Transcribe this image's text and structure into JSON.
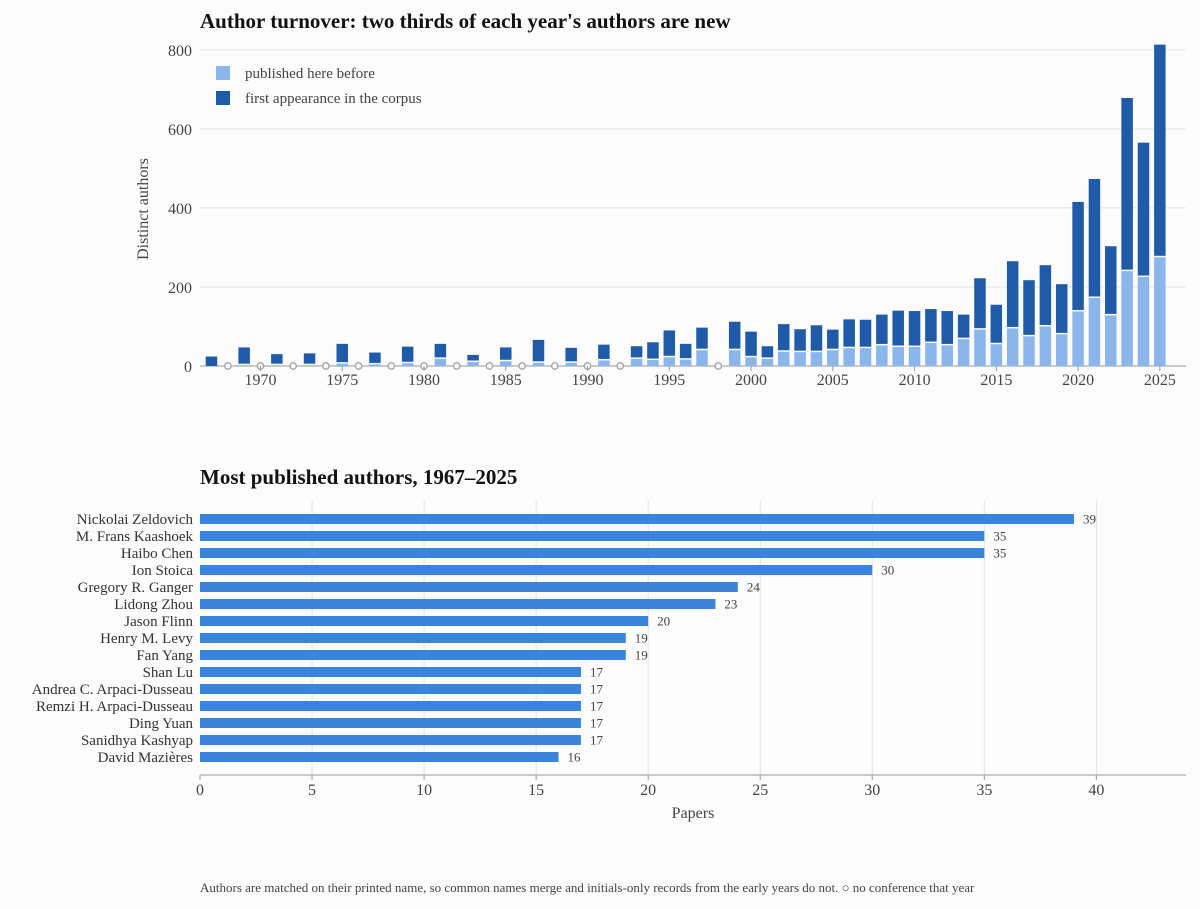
{
  "colors": {
    "before": "#8ab6ec",
    "first": "#1f5ba8",
    "bar2": "#3a84dd",
    "grid": "#e4e4e4",
    "axis": "#999999",
    "gap": "#aaaaaa"
  },
  "chart_data": [
    {
      "type": "bar",
      "stacked": true,
      "title": "Author turnover: two thirds of each year's authors are new",
      "ylabel": "Distinct authors",
      "xlabel": "",
      "ylim": [
        0,
        850
      ],
      "yticks": [
        0,
        200,
        400,
        600,
        800
      ],
      "xticks": [
        1970,
        1975,
        1980,
        1985,
        1990,
        1995,
        2000,
        2005,
        2010,
        2015,
        2020,
        2025
      ],
      "grid": "horizontal",
      "legend": {
        "placement": "top-left",
        "items": [
          "published here before",
          "first appearance in the corpus"
        ]
      },
      "series": [
        {
          "name": "published here before",
          "x": [
            1967,
            1969,
            1971,
            1973,
            1975,
            1977,
            1979,
            1981,
            1983,
            1985,
            1987,
            1989,
            1991,
            1993,
            1994,
            1995,
            1996,
            1997,
            1999,
            2000,
            2001,
            2002,
            2003,
            2004,
            2005,
            2006,
            2007,
            2008,
            2009,
            2010,
            2011,
            2012,
            2013,
            2014,
            2015,
            2016,
            2017,
            2018,
            2019,
            2020,
            2021,
            2022,
            2023,
            2024,
            2025
          ],
          "values": [
            0,
            2,
            2,
            2,
            6,
            4,
            7,
            18,
            10,
            12,
            8,
            8,
            14,
            18,
            15,
            22,
            16,
            40,
            40,
            22,
            18,
            36,
            35,
            35,
            40,
            45,
            45,
            52,
            48,
            48,
            58,
            52,
            68,
            92,
            55,
            95,
            75,
            100,
            80,
            138,
            172,
            128,
            240,
            225,
            275
          ]
        },
        {
          "name": "first appearance in the corpus",
          "x": [
            1967,
            1969,
            1971,
            1973,
            1975,
            1977,
            1979,
            1981,
            1983,
            1985,
            1987,
            1989,
            1991,
            1993,
            1994,
            1995,
            1996,
            1997,
            1999,
            2000,
            2001,
            2002,
            2003,
            2004,
            2005,
            2006,
            2007,
            2008,
            2009,
            2010,
            2011,
            2012,
            2013,
            2014,
            2015,
            2016,
            2017,
            2018,
            2019,
            2020,
            2021,
            2022,
            2023,
            2024,
            2025
          ],
          "values": [
            24,
            45,
            28,
            30,
            50,
            30,
            42,
            38,
            18,
            35,
            58,
            38,
            40,
            32,
            45,
            68,
            40,
            57,
            72,
            65,
            32,
            70,
            58,
            68,
            52,
            73,
            72,
            78,
            92,
            91,
            86,
            87,
            62,
            130,
            100,
            170,
            142,
            155,
            127,
            277,
            301,
            175,
            438,
            340,
            538
          ]
        }
      ],
      "no_conference_years": [
        1968,
        1970,
        1972,
        1974,
        1976,
        1978,
        1980,
        1982,
        1984,
        1986,
        1988,
        1990,
        1992,
        1998
      ]
    },
    {
      "type": "bar",
      "orientation": "horizontal",
      "title": "Most published authors, 1967–2025",
      "xlabel": "Papers",
      "xlim": [
        0,
        44
      ],
      "xticks": [
        0,
        5,
        10,
        15,
        20,
        25,
        30,
        35,
        40
      ],
      "grid": "vertical",
      "categories": [
        "Nickolai Zeldovich",
        "M. Frans Kaashoek",
        "Haibo Chen",
        "Ion Stoica",
        "Gregory R. Ganger",
        "Lidong Zhou",
        "Jason Flinn",
        "Henry M. Levy",
        "Fan Yang",
        "Shan Lu",
        "Andrea C. Arpaci-Dusseau",
        "Remzi H. Arpaci-Dusseau",
        "Ding Yuan",
        "Sanidhya Kashyap",
        "David Mazières"
      ],
      "values": [
        39,
        35,
        35,
        30,
        24,
        23,
        20,
        19,
        19,
        17,
        17,
        17,
        17,
        17,
        16
      ]
    }
  ],
  "footnote": "Authors are matched on their printed name, so common names merge and initials-only records from the early years do not.   ○ no conference that year"
}
